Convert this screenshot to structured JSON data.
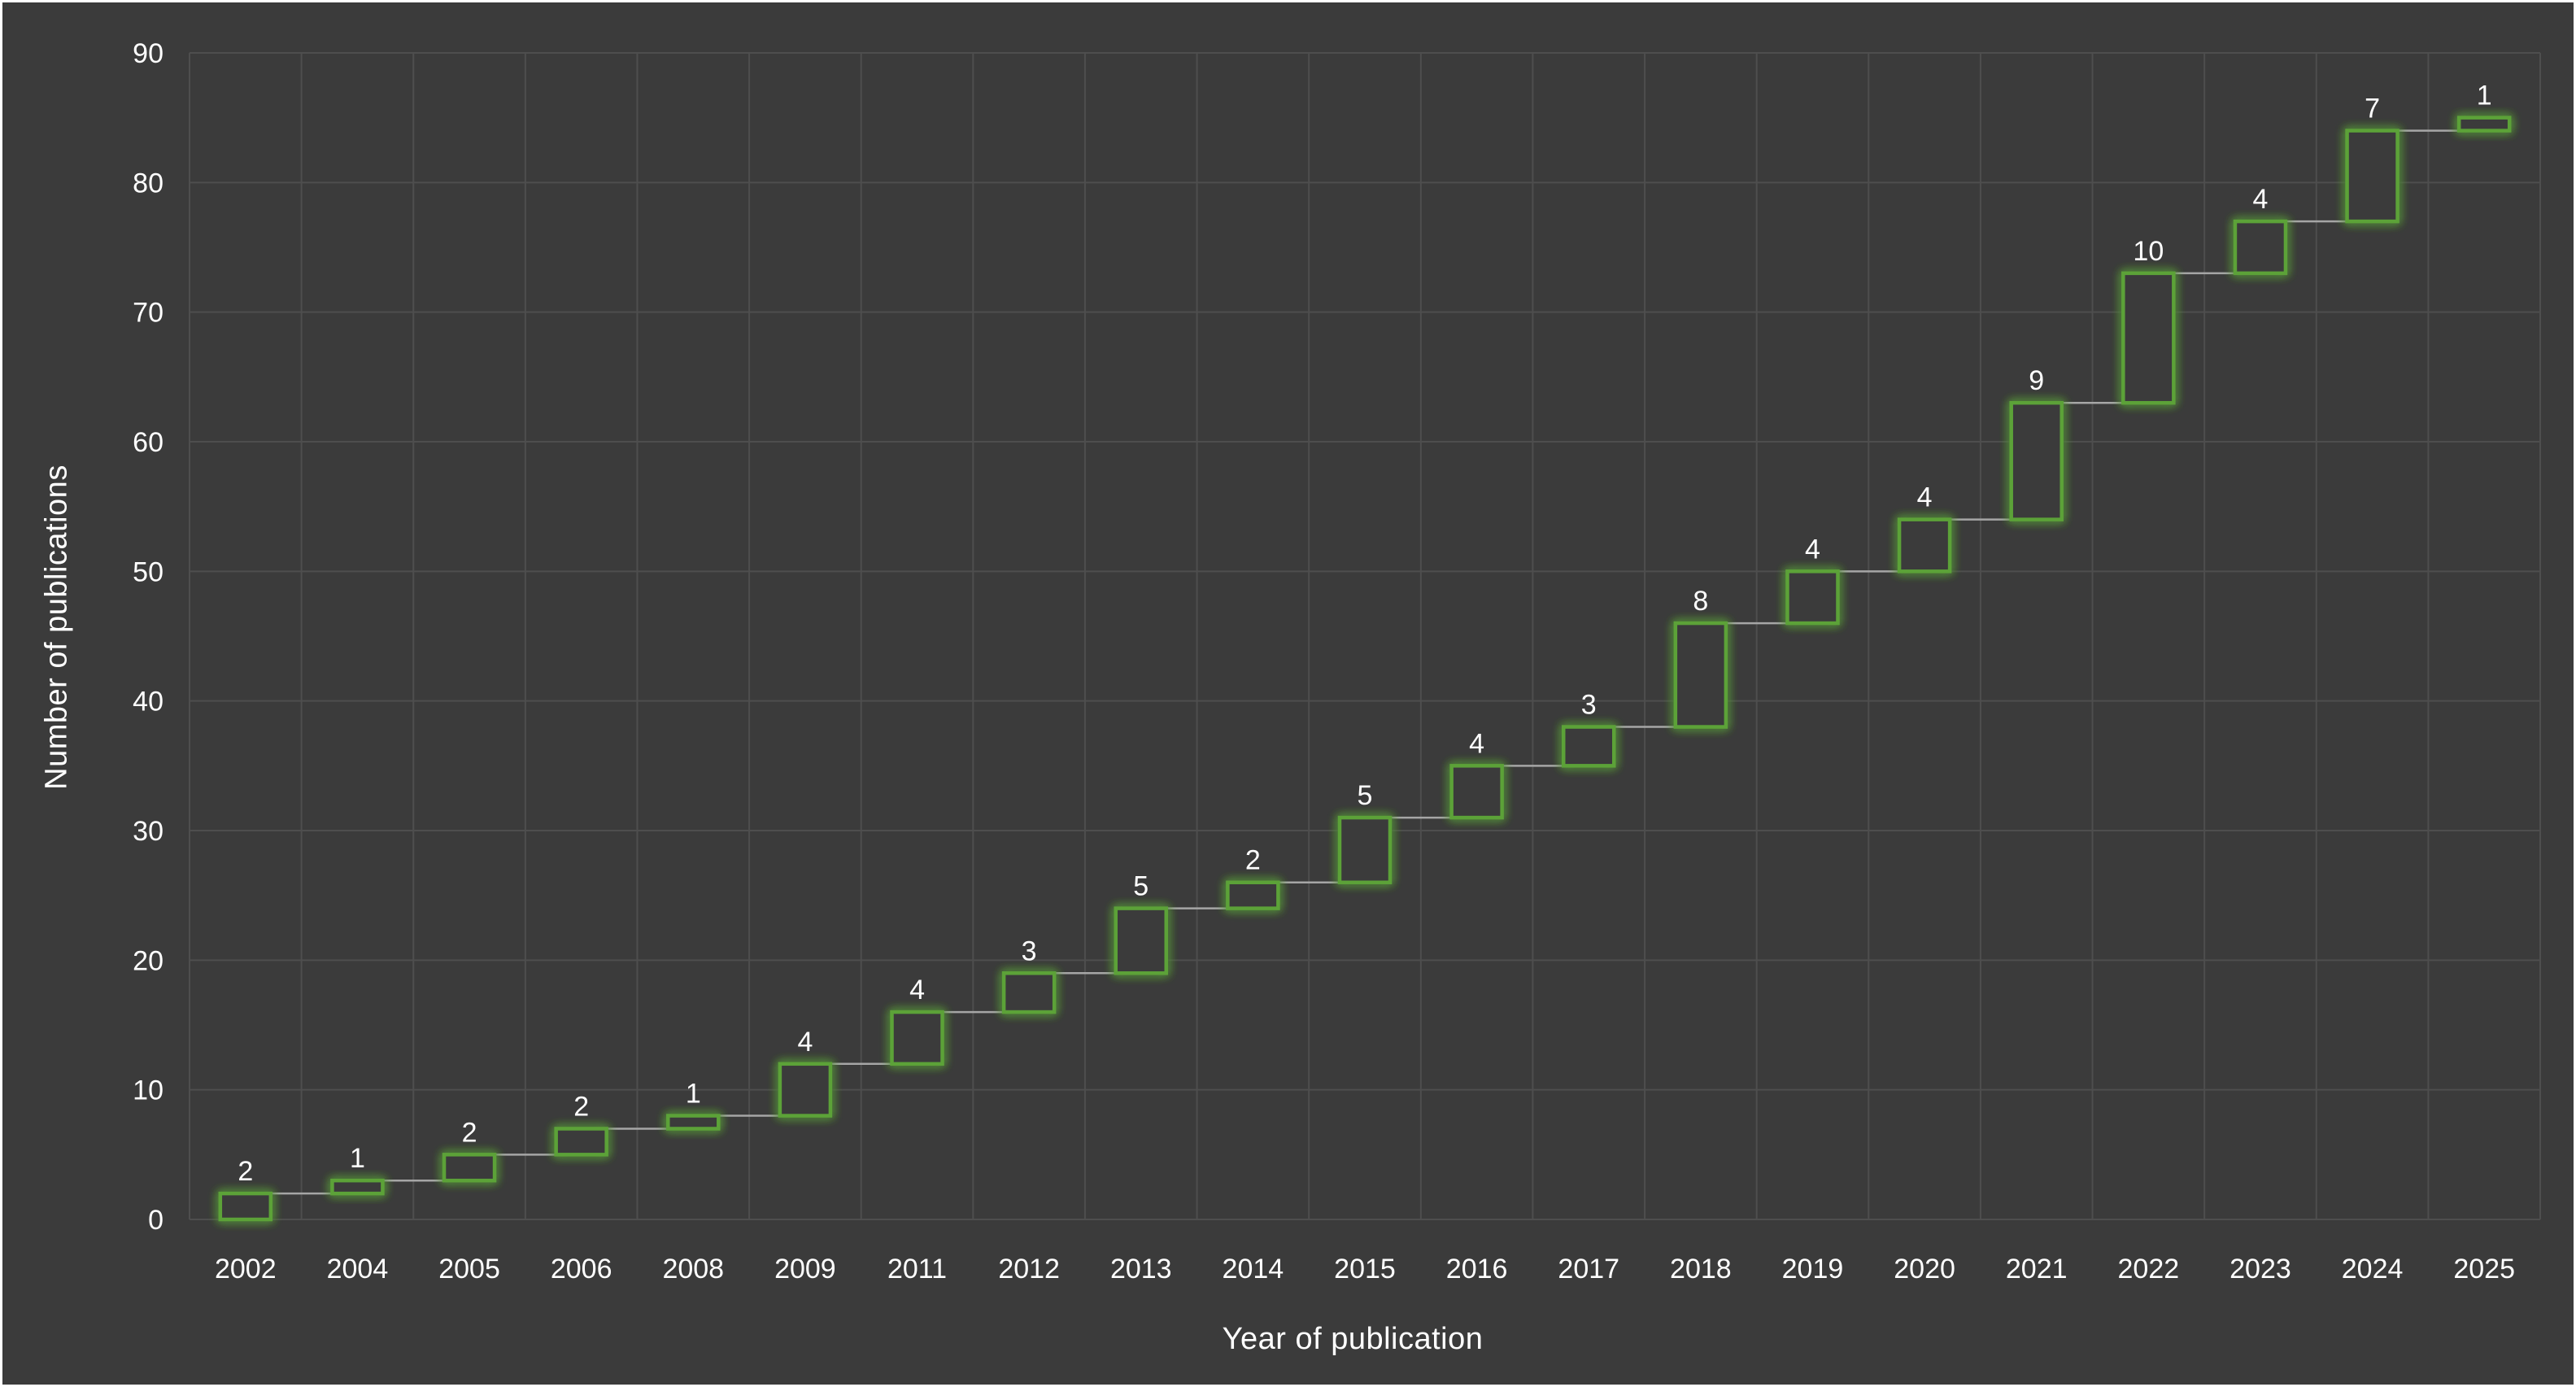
{
  "chart_data": {
    "type": "bar",
    "subtype": "waterfall",
    "title": "",
    "xlabel": "Year of publication",
    "ylabel": "Number of publications",
    "categories": [
      "2002",
      "2004",
      "2005",
      "2006",
      "2008",
      "2009",
      "2011",
      "2012",
      "2013",
      "2014",
      "2015",
      "2016",
      "2017",
      "2018",
      "2019",
      "2020",
      "2021",
      "2022",
      "2023",
      "2024",
      "2025"
    ],
    "values": [
      2,
      1,
      2,
      2,
      1,
      4,
      4,
      3,
      5,
      2,
      5,
      4,
      3,
      8,
      4,
      4,
      9,
      10,
      4,
      7,
      1
    ],
    "cumulative": [
      2,
      3,
      5,
      7,
      8,
      12,
      16,
      19,
      24,
      26,
      31,
      35,
      38,
      46,
      50,
      54,
      63,
      73,
      77,
      84,
      85
    ],
    "ylim": [
      0,
      90
    ],
    "ytick_step": 10,
    "yticks": [
      0,
      10,
      20,
      30,
      40,
      50,
      60,
      70,
      80,
      90
    ],
    "grid": true,
    "legend": null,
    "colors": {
      "background": "#3B3B3B",
      "gridline": "#4E4E4E",
      "bar_stroke": "#5BA238",
      "bar_glow": "#8BE75E",
      "bar_fill": "#3B3B3B",
      "connector": "#A6A6A6",
      "text": "#FFFFFF"
    }
  }
}
